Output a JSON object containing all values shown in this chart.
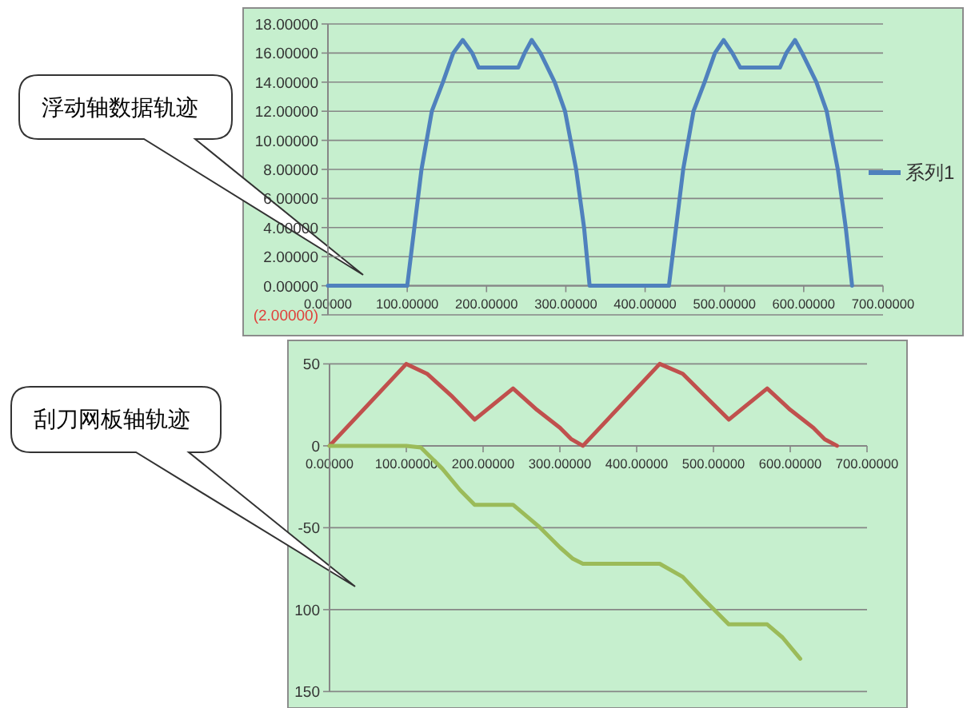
{
  "chart_data": [
    {
      "type": "line",
      "x": [
        0,
        100,
        109,
        118,
        131,
        145,
        158,
        170,
        182,
        190,
        240,
        248,
        257,
        268,
        286,
        299,
        313,
        323,
        330,
        430,
        439,
        448,
        461,
        475,
        488,
        499,
        510,
        520,
        570,
        578,
        589,
        598,
        616,
        629,
        643,
        653,
        661
      ],
      "series": [
        {
          "name": "系列1",
          "color": "#4f81bd",
          "values": [
            0,
            0,
            4,
            8,
            12,
            14,
            16,
            16.9,
            16,
            15,
            15,
            16,
            16.9,
            16,
            14,
            12,
            8,
            4,
            0,
            0,
            4,
            8,
            12,
            14,
            16,
            16.9,
            16,
            15,
            15,
            16,
            16.9,
            16,
            14,
            12,
            8,
            4,
            0
          ]
        }
      ],
      "xlim": [
        0,
        700
      ],
      "xticks": [
        {
          "value": 0,
          "label": "0.00000"
        },
        {
          "value": 100,
          "label": "100.00000"
        },
        {
          "value": 200,
          "label": "200.00000"
        },
        {
          "value": 300,
          "label": "300.00000"
        },
        {
          "value": 400,
          "label": "400.00000"
        },
        {
          "value": 500,
          "label": "500.00000"
        },
        {
          "value": 600,
          "label": "600.00000"
        },
        {
          "value": 700,
          "label": "700.00000"
        }
      ],
      "ylim": [
        -2,
        18
      ],
      "yticks": [
        {
          "value": -2,
          "label": "(2.00000)"
        },
        {
          "value": 0,
          "label": "0.00000"
        },
        {
          "value": 2,
          "label": "2.00000"
        },
        {
          "value": 4,
          "label": "4.00000"
        },
        {
          "value": 6,
          "label": "6.00000"
        },
        {
          "value": 8,
          "label": "8.00000"
        },
        {
          "value": 10,
          "label": "10.00000"
        },
        {
          "value": 12,
          "label": "12.00000"
        },
        {
          "value": 14,
          "label": "14.00000"
        },
        {
          "value": 16,
          "label": "16.00000"
        },
        {
          "value": 18,
          "label": "18.00000"
        }
      ],
      "grid": "y",
      "legend": "right",
      "marker": "none",
      "line_style": "solid",
      "annotations": [
        "浮动轴数据轨迹"
      ]
    },
    {
      "type": "line",
      "series": [
        {
          "color": "#c0504d",
          "x": [
            0,
            100,
            127,
            160,
            189,
            239,
            270,
            300,
            315,
            330,
            430,
            460,
            490,
            520,
            570,
            600,
            630,
            645,
            661
          ],
          "values": [
            0,
            50,
            44,
            30,
            16,
            35,
            22,
            11,
            4,
            0,
            50,
            44,
            30,
            16,
            35,
            22,
            11,
            4,
            0
          ]
        },
        {
          "color": "#9bbb59",
          "x": [
            0,
            100,
            119,
            147,
            170,
            189,
            239,
            272,
            300,
            317,
            330,
            430,
            460,
            488,
            520,
            570,
            590,
            613
          ],
          "values": [
            0,
            0,
            -1,
            -14,
            -27,
            -36,
            -36,
            -49,
            -62,
            -69,
            -72,
            -72,
            -80,
            -94,
            -109,
            -109,
            -117,
            -130
          ]
        }
      ],
      "xlim": [
        0,
        700
      ],
      "xticks": [
        {
          "value": 0,
          "label": "0.00000"
        },
        {
          "value": 100,
          "label": "100.00000"
        },
        {
          "value": 200,
          "label": "200.00000"
        },
        {
          "value": 300,
          "label": "300.00000"
        },
        {
          "value": 400,
          "label": "400.00000"
        },
        {
          "value": 500,
          "label": "500.00000"
        },
        {
          "value": 600,
          "label": "600.00000"
        },
        {
          "value": 700,
          "label": "700.00000"
        }
      ],
      "ylim": [
        -150,
        50
      ],
      "yticks": [
        {
          "value": -150,
          "label": "150"
        },
        {
          "value": -100,
          "label": "100"
        },
        {
          "value": -50,
          "label": "-50"
        },
        {
          "value": 0,
          "label": "0"
        },
        {
          "value": 50,
          "label": "50"
        }
      ],
      "grid": "y",
      "marker": "none",
      "line_style": "solid",
      "annotations": [
        "刮刀网板轴轨迹"
      ]
    }
  ]
}
